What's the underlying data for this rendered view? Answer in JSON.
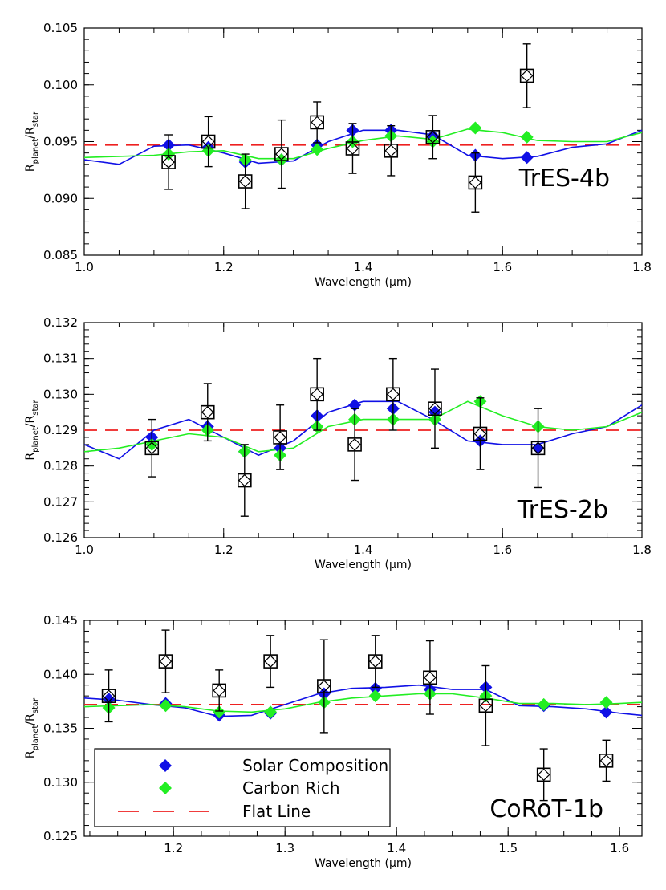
{
  "colors": {
    "solar": "#1010e6",
    "carbon": "#22ee22",
    "flat": "#ee2020",
    "observed": "#000000"
  },
  "legend": {
    "solar": "Solar Composition",
    "carbon": "Carbon Rich",
    "flat": "Flat Line"
  },
  "chart_data": [
    {
      "type": "scatter",
      "panel_label": "TrES-4b",
      "xlabel": "Wavelength (μm)",
      "ylabel": "Rplanet/Rstar",
      "xlim": [
        1.0,
        1.8
      ],
      "ylim": [
        0.085,
        0.105
      ],
      "xticks": [
        1.0,
        1.2,
        1.4,
        1.6,
        1.8
      ],
      "yticks": [
        0.085,
        0.09,
        0.095,
        0.1,
        0.105
      ],
      "y_decimals": 3,
      "grid": false,
      "flat_line": 0.0947,
      "observed": {
        "x": [
          1.121,
          1.178,
          1.231,
          1.283,
          1.334,
          1.385,
          1.44,
          1.5,
          1.561,
          1.635
        ],
        "y": [
          0.0932,
          0.095,
          0.0915,
          0.0939,
          0.0967,
          0.0944,
          0.0942,
          0.0954,
          0.0914,
          0.1008
        ],
        "err": [
          0.0024,
          0.0022,
          0.0024,
          0.003,
          0.0018,
          0.0022,
          0.0022,
          0.0019,
          0.0026,
          0.0028
        ]
      },
      "solar_points": {
        "x": [
          1.121,
          1.178,
          1.231,
          1.283,
          1.334,
          1.385,
          1.44,
          1.5,
          1.561,
          1.635
        ],
        "y": [
          0.0947,
          0.0945,
          0.0932,
          0.0934,
          0.0947,
          0.096,
          0.096,
          0.0955,
          0.0938,
          0.0936
        ]
      },
      "carbon_points": {
        "x": [
          1.121,
          1.178,
          1.231,
          1.283,
          1.334,
          1.385,
          1.44,
          1.5,
          1.561,
          1.635
        ],
        "y": [
          0.0939,
          0.0942,
          0.0934,
          0.0934,
          0.0943,
          0.095,
          0.0955,
          0.095,
          0.0962,
          0.0954
        ]
      },
      "solar_model": {
        "x": [
          1.0,
          1.05,
          1.1,
          1.15,
          1.2,
          1.25,
          1.3,
          1.35,
          1.4,
          1.45,
          1.5,
          1.55,
          1.6,
          1.65,
          1.7,
          1.75,
          1.8
        ],
        "y": [
          0.0934,
          0.093,
          0.0946,
          0.0947,
          0.094,
          0.0931,
          0.0933,
          0.095,
          0.096,
          0.096,
          0.0956,
          0.0938,
          0.0935,
          0.0937,
          0.0945,
          0.0948,
          0.096
        ]
      },
      "carbon_model": {
        "x": [
          1.0,
          1.05,
          1.1,
          1.15,
          1.2,
          1.25,
          1.3,
          1.35,
          1.4,
          1.45,
          1.5,
          1.55,
          1.6,
          1.65,
          1.7,
          1.75,
          1.8
        ],
        "y": [
          0.0936,
          0.0937,
          0.0938,
          0.0941,
          0.0942,
          0.0935,
          0.0935,
          0.0944,
          0.0951,
          0.0955,
          0.0952,
          0.0961,
          0.0958,
          0.0951,
          0.095,
          0.095,
          0.0958
        ]
      }
    },
    {
      "type": "scatter",
      "panel_label": "TrES-2b",
      "xlabel": "Wavelength (μm)",
      "ylabel": "Rplanet/Rstar",
      "xlim": [
        1.0,
        1.8
      ],
      "ylim": [
        0.126,
        0.132
      ],
      "xticks": [
        1.0,
        1.2,
        1.4,
        1.6,
        1.8
      ],
      "yticks": [
        0.126,
        0.127,
        0.128,
        0.129,
        0.13,
        0.131,
        0.132
      ],
      "y_decimals": 3,
      "grid": false,
      "flat_line": 0.129,
      "observed": {
        "x": [
          1.097,
          1.177,
          1.23,
          1.281,
          1.334,
          1.388,
          1.443,
          1.503,
          1.568,
          1.651
        ],
        "y": [
          0.1285,
          0.1295,
          0.1276,
          0.1288,
          0.13,
          0.1286,
          0.13,
          0.1296,
          0.1289,
          0.1285
        ],
        "err": [
          0.0008,
          0.0008,
          0.001,
          0.0009,
          0.001,
          0.001,
          0.001,
          0.0011,
          0.001,
          0.0011
        ]
      },
      "solar_points": {
        "x": [
          1.097,
          1.177,
          1.23,
          1.281,
          1.334,
          1.388,
          1.443,
          1.503,
          1.568,
          1.651
        ],
        "y": [
          0.1288,
          0.1291,
          0.1284,
          0.1285,
          0.1294,
          0.1297,
          0.1296,
          0.1295,
          0.1287,
          0.1285
        ]
      },
      "carbon_points": {
        "x": [
          1.097,
          1.177,
          1.23,
          1.281,
          1.334,
          1.388,
          1.443,
          1.503,
          1.568,
          1.651
        ],
        "y": [
          0.1286,
          0.129,
          0.1284,
          0.1283,
          0.1291,
          0.1293,
          0.1293,
          0.1293,
          0.1298,
          0.1291
        ]
      },
      "solar_model": {
        "x": [
          1.0,
          1.05,
          1.1,
          1.15,
          1.2,
          1.25,
          1.3,
          1.35,
          1.4,
          1.45,
          1.5,
          1.55,
          1.6,
          1.65,
          1.7,
          1.75,
          1.8
        ],
        "y": [
          0.1286,
          0.1282,
          0.129,
          0.1293,
          0.1288,
          0.1283,
          0.1287,
          0.1295,
          0.1298,
          0.1298,
          0.1293,
          0.1287,
          0.1286,
          0.1286,
          0.1289,
          0.1291,
          0.1297
        ]
      },
      "carbon_model": {
        "x": [
          1.0,
          1.05,
          1.1,
          1.15,
          1.2,
          1.25,
          1.3,
          1.35,
          1.4,
          1.45,
          1.5,
          1.55,
          1.6,
          1.65,
          1.7,
          1.75,
          1.8
        ],
        "y": [
          0.1284,
          0.1285,
          0.1287,
          0.1289,
          0.1288,
          0.1284,
          0.1285,
          0.1291,
          0.1293,
          0.1293,
          0.1293,
          0.1298,
          0.1294,
          0.1291,
          0.129,
          0.1291,
          0.1295
        ]
      }
    },
    {
      "type": "scatter",
      "panel_label": "CoRoT-1b",
      "xlabel": "Wavelength (μm)",
      "ylabel": "Rplanet/Rstar",
      "xlim": [
        1.12,
        1.62
      ],
      "ylim": [
        0.125,
        0.145
      ],
      "xticks": [
        1.2,
        1.3,
        1.4,
        1.5,
        1.6
      ],
      "yticks": [
        0.125,
        0.13,
        0.135,
        0.14,
        0.145
      ],
      "y_decimals": 3,
      "grid": false,
      "flat_line": 0.1372,
      "legend_position": "bottom-left",
      "observed": {
        "x": [
          1.142,
          1.193,
          1.241,
          1.287,
          1.335,
          1.381,
          1.43,
          1.48,
          1.532,
          1.588
        ],
        "y": [
          0.138,
          0.1412,
          0.1385,
          0.1412,
          0.1389,
          0.1412,
          0.1397,
          0.1371,
          0.1307,
          0.132
        ],
        "err": [
          0.0024,
          0.0029,
          0.0019,
          0.0024,
          0.0043,
          0.0024,
          0.0034,
          0.0037,
          0.0024,
          0.0019
        ]
      },
      "solar_points": {
        "x": [
          1.142,
          1.193,
          1.241,
          1.287,
          1.335,
          1.381,
          1.43,
          1.48,
          1.532,
          1.588
        ],
        "y": [
          0.1377,
          0.1373,
          0.1362,
          0.1364,
          0.1382,
          0.1387,
          0.1386,
          0.1388,
          0.1371,
          0.1365
        ]
      },
      "carbon_points": {
        "x": [
          1.142,
          1.193,
          1.241,
          1.287,
          1.335,
          1.381,
          1.43,
          1.48,
          1.532,
          1.588
        ],
        "y": [
          0.1369,
          0.1371,
          0.1365,
          0.1365,
          0.1374,
          0.138,
          0.1382,
          0.138,
          0.1372,
          0.1374
        ]
      },
      "solar_model": {
        "x": [
          1.12,
          1.15,
          1.18,
          1.21,
          1.24,
          1.27,
          1.3,
          1.33,
          1.36,
          1.39,
          1.42,
          1.45,
          1.48,
          1.51,
          1.54,
          1.57,
          1.6,
          1.62
        ],
        "y": [
          0.1378,
          0.1376,
          0.1372,
          0.1369,
          0.1361,
          0.1362,
          0.1372,
          0.1382,
          0.1387,
          0.1388,
          0.139,
          0.1386,
          0.1386,
          0.1371,
          0.137,
          0.1368,
          0.1364,
          0.1362
        ]
      },
      "carbon_model": {
        "x": [
          1.12,
          1.15,
          1.18,
          1.21,
          1.24,
          1.27,
          1.3,
          1.33,
          1.36,
          1.39,
          1.42,
          1.45,
          1.48,
          1.51,
          1.54,
          1.57,
          1.6,
          1.62
        ],
        "y": [
          0.137,
          0.1371,
          0.1372,
          0.137,
          0.1366,
          0.1365,
          0.1368,
          0.1374,
          0.1378,
          0.138,
          0.1382,
          0.1382,
          0.1378,
          0.1373,
          0.1373,
          0.1372,
          0.1373,
          0.1374
        ]
      }
    }
  ]
}
